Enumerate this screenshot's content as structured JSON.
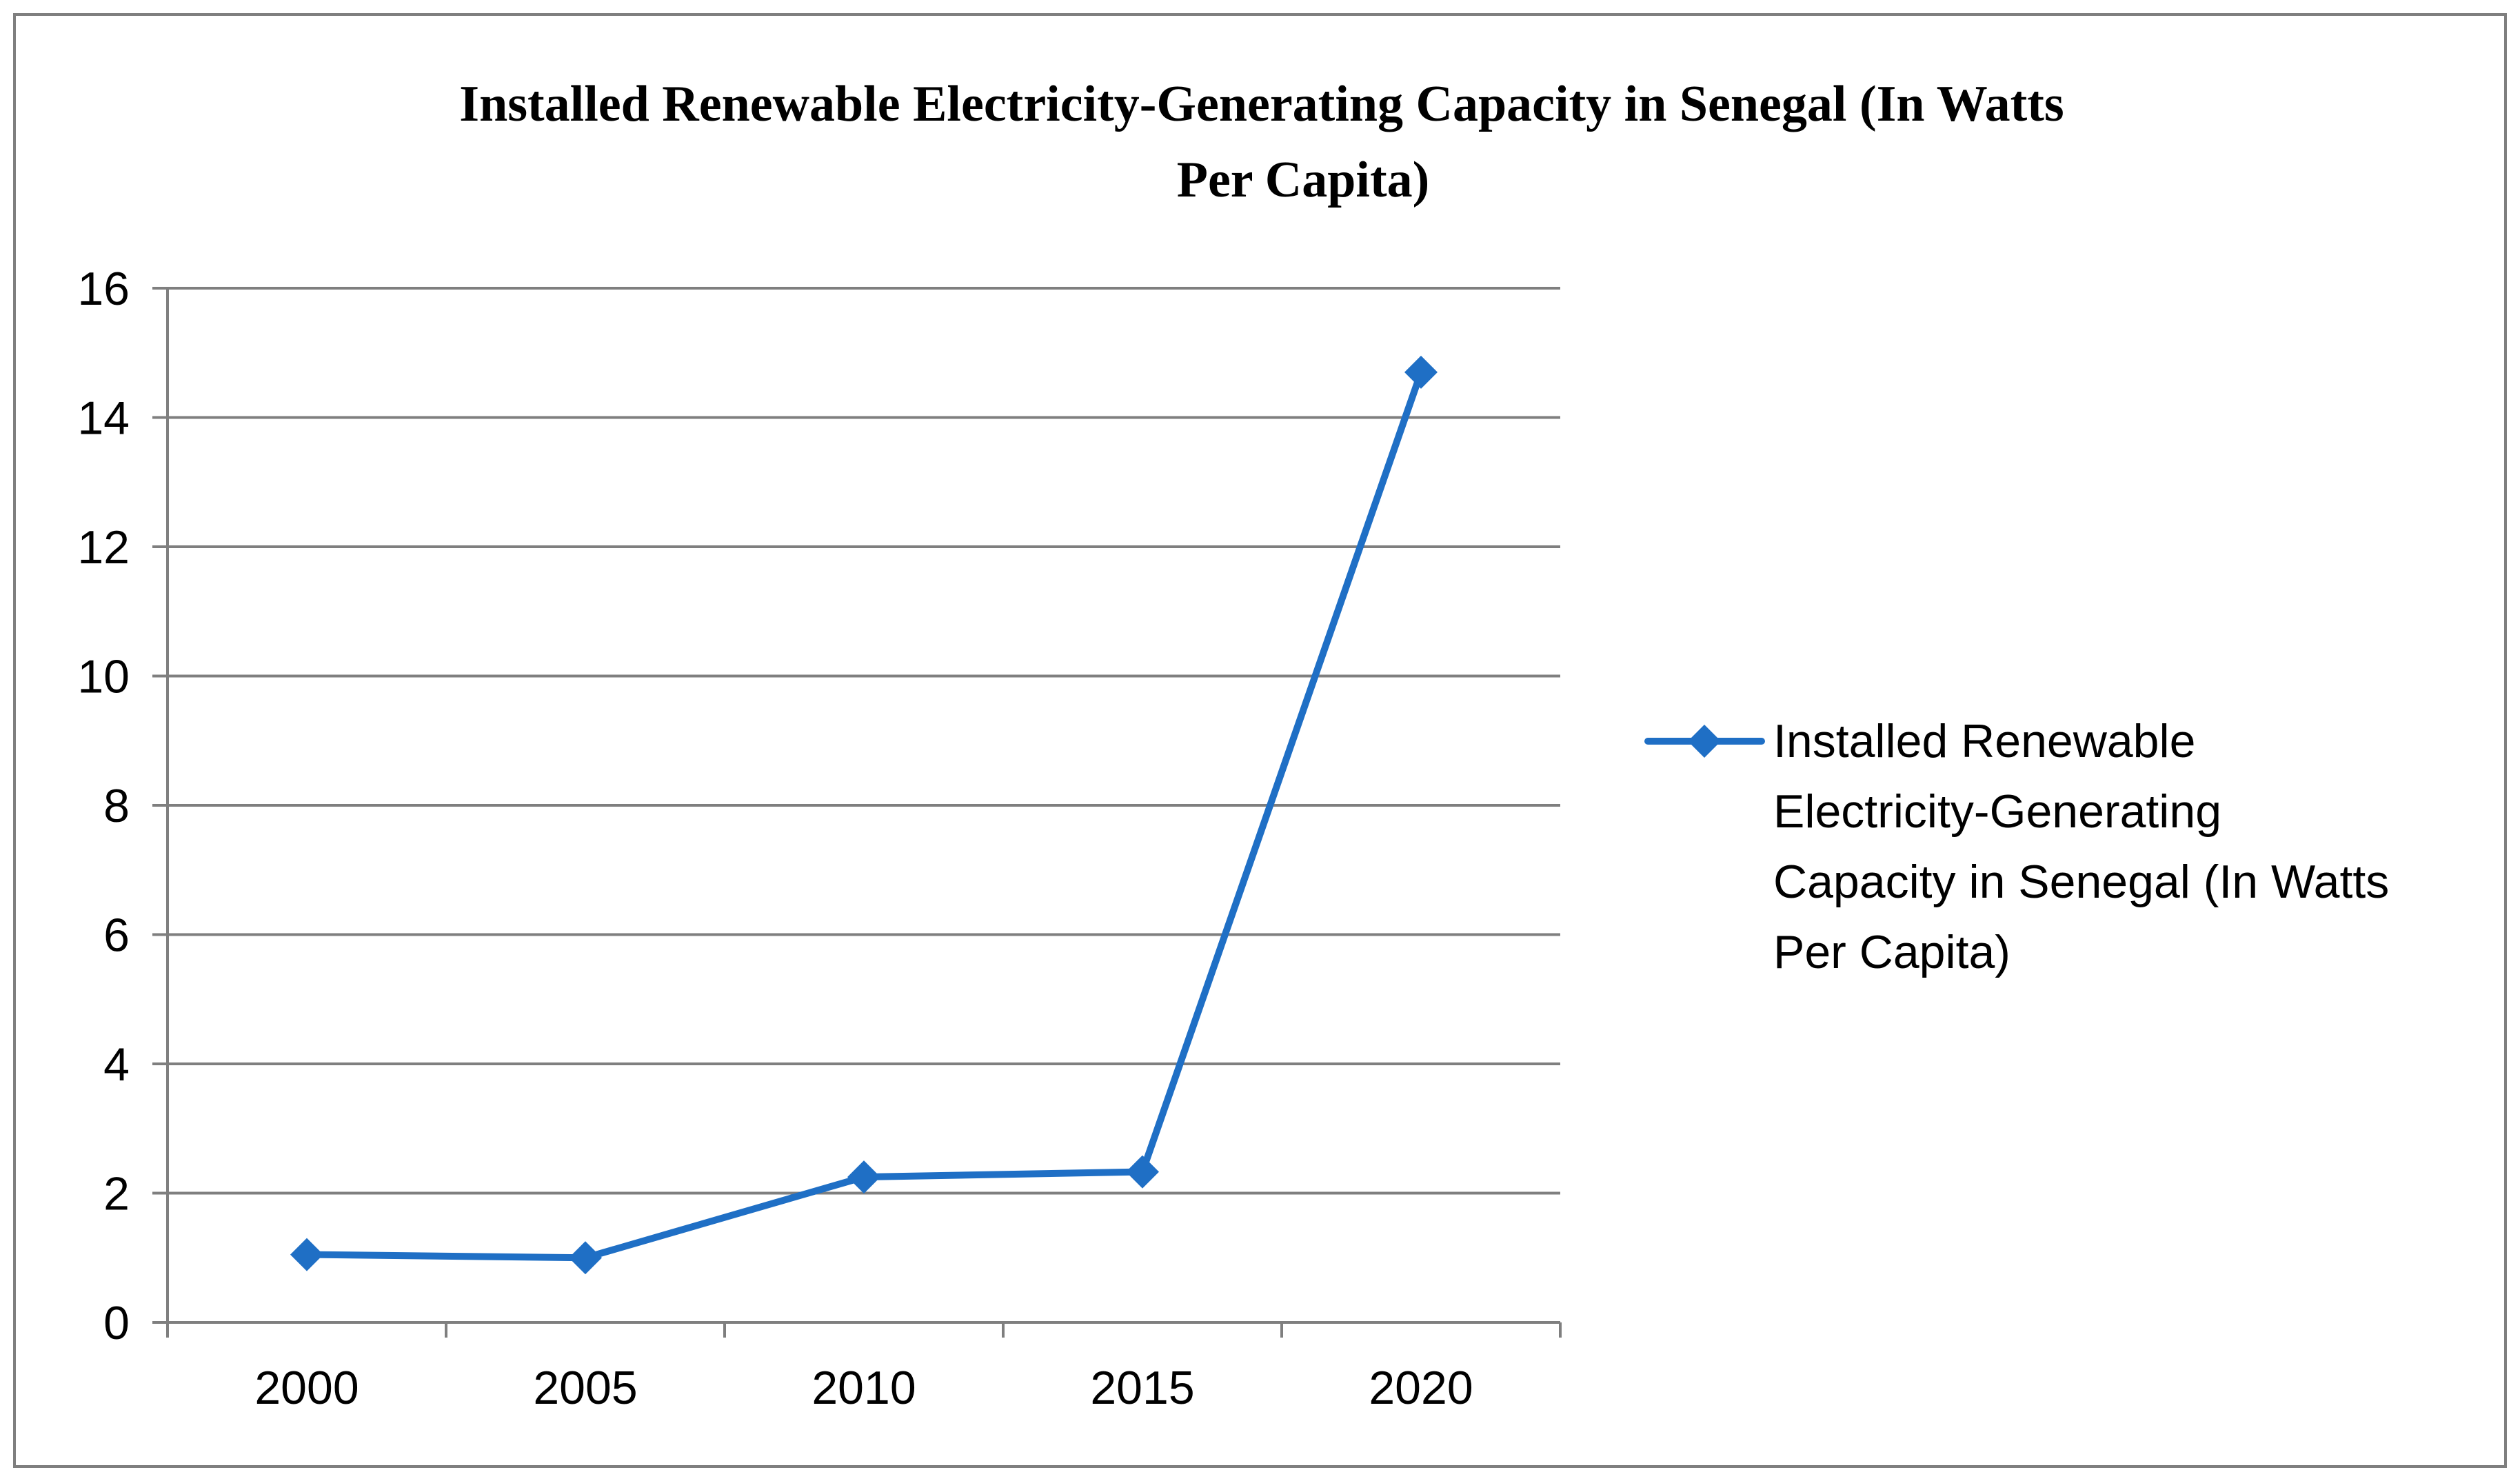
{
  "chart_data": {
    "type": "line",
    "title_lines": [
      "Installed Renewable Electricity-Generating Capacity in Senegal (In Watts",
      "Per Capita)"
    ],
    "categories": [
      "2000",
      "2005",
      "2010",
      "2015",
      "2020"
    ],
    "series": [
      {
        "name": "Installed Renewable Electricity-Generating Capacity in Senegal (In Watts Per Capita)",
        "legend_lines": [
          "Installed Renewable",
          "Electricity-Generating",
          "Capacity in Senegal (In Watts",
          "Per Capita)"
        ],
        "values": [
          1.05,
          1.0,
          2.25,
          2.33,
          14.7
        ],
        "color": "#1f6fc5",
        "marker": "diamond"
      }
    ],
    "y_ticks": [
      "0",
      "2",
      "4",
      "6",
      "8",
      "10",
      "12",
      "14",
      "16"
    ],
    "ylim": [
      0,
      16
    ],
    "xlabel": "",
    "ylabel": "",
    "grid": true,
    "legend_position": "right",
    "gridline_color": "#7f7f7f"
  }
}
